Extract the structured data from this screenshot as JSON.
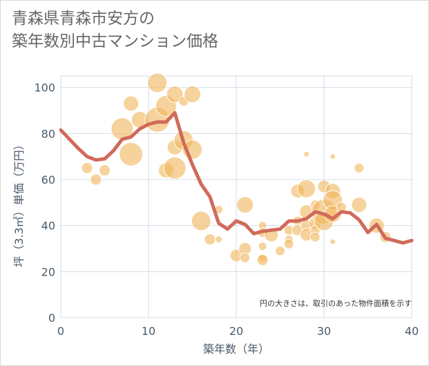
{
  "title_line1": "青森県青森市安方の",
  "title_line2": "築年数別中古マンション価格",
  "note": "円の大きさは、取引のあった物件面積を示す",
  "colors": {
    "bubble": "#f0b55a",
    "line": "#d06a5a",
    "grid": "#d0dce8",
    "axis_text": "#4a5a6a"
  },
  "chart_data": {
    "type": "scatter",
    "xlabel": "築年数（年）",
    "ylabel": "坪（3.3㎡）単価（万円）",
    "xlim": [
      0,
      40
    ],
    "ylim": [
      0,
      105
    ],
    "x_ticks": [
      0,
      10,
      20,
      30,
      40
    ],
    "y_ticks": [
      0,
      20,
      40,
      60,
      80,
      100
    ],
    "grid": true,
    "bubbles": [
      {
        "x": 3,
        "y": 65,
        "s": 8
      },
      {
        "x": 4,
        "y": 60,
        "s": 8
      },
      {
        "x": 5,
        "y": 64,
        "s": 8
      },
      {
        "x": 7,
        "y": 82,
        "s": 16
      },
      {
        "x": 8,
        "y": 93,
        "s": 11
      },
      {
        "x": 8,
        "y": 71,
        "s": 17
      },
      {
        "x": 9,
        "y": 86,
        "s": 12
      },
      {
        "x": 11,
        "y": 102,
        "s": 14
      },
      {
        "x": 11,
        "y": 86,
        "s": 18
      },
      {
        "x": 12,
        "y": 92,
        "s": 15
      },
      {
        "x": 12,
        "y": 64,
        "s": 11
      },
      {
        "x": 13,
        "y": 97,
        "s": 12
      },
      {
        "x": 13,
        "y": 74,
        "s": 11
      },
      {
        "x": 13,
        "y": 65,
        "s": 16
      },
      {
        "x": 14,
        "y": 94,
        "s": 7
      },
      {
        "x": 14,
        "y": 77,
        "s": 14
      },
      {
        "x": 15,
        "y": 97,
        "s": 12
      },
      {
        "x": 15,
        "y": 73,
        "s": 14
      },
      {
        "x": 16,
        "y": 42,
        "s": 14
      },
      {
        "x": 17,
        "y": 34,
        "s": 8
      },
      {
        "x": 18,
        "y": 47,
        "s": 6
      },
      {
        "x": 18,
        "y": 34,
        "s": 5
      },
      {
        "x": 20,
        "y": 27,
        "s": 9
      },
      {
        "x": 21,
        "y": 49,
        "s": 12
      },
      {
        "x": 21,
        "y": 30,
        "s": 9
      },
      {
        "x": 21,
        "y": 26,
        "s": 7
      },
      {
        "x": 23,
        "y": 40,
        "s": 6
      },
      {
        "x": 23,
        "y": 37,
        "s": 7
      },
      {
        "x": 23,
        "y": 31,
        "s": 6
      },
      {
        "x": 23,
        "y": 26,
        "s": 6
      },
      {
        "x": 23,
        "y": 25,
        "s": 8
      },
      {
        "x": 24,
        "y": 36,
        "s": 10
      },
      {
        "x": 25,
        "y": 29,
        "s": 7
      },
      {
        "x": 26,
        "y": 38,
        "s": 7
      },
      {
        "x": 26,
        "y": 34,
        "s": 6
      },
      {
        "x": 26,
        "y": 32,
        "s": 7
      },
      {
        "x": 27,
        "y": 55,
        "s": 10
      },
      {
        "x": 27,
        "y": 42,
        "s": 7
      },
      {
        "x": 27,
        "y": 38,
        "s": 8
      },
      {
        "x": 28,
        "y": 71,
        "s": 4
      },
      {
        "x": 28,
        "y": 56,
        "s": 13
      },
      {
        "x": 28,
        "y": 46,
        "s": 10
      },
      {
        "x": 28,
        "y": 40,
        "s": 8
      },
      {
        "x": 28,
        "y": 36,
        "s": 9
      },
      {
        "x": 29,
        "y": 49,
        "s": 7
      },
      {
        "x": 29,
        "y": 41,
        "s": 9
      },
      {
        "x": 29,
        "y": 38,
        "s": 7
      },
      {
        "x": 29,
        "y": 35,
        "s": 7
      },
      {
        "x": 30,
        "y": 57,
        "s": 9
      },
      {
        "x": 30,
        "y": 46,
        "s": 18
      },
      {
        "x": 30,
        "y": 42,
        "s": 14
      },
      {
        "x": 31,
        "y": 70,
        "s": 4
      },
      {
        "x": 31,
        "y": 55,
        "s": 11
      },
      {
        "x": 31,
        "y": 51,
        "s": 14
      },
      {
        "x": 31,
        "y": 45,
        "s": 12
      },
      {
        "x": 31,
        "y": 33,
        "s": 4
      },
      {
        "x": 32,
        "y": 48,
        "s": 7
      },
      {
        "x": 34,
        "y": 65,
        "s": 7
      },
      {
        "x": 34,
        "y": 49,
        "s": 11
      },
      {
        "x": 36,
        "y": 40,
        "s": 11
      },
      {
        "x": 37,
        "y": 35,
        "s": 8
      }
    ],
    "series": [
      {
        "x": [
          0,
          1,
          2,
          3,
          4,
          5,
          6,
          7,
          8,
          9,
          10,
          11,
          12,
          13,
          14,
          15,
          16,
          17,
          18,
          19,
          20,
          21,
          22,
          23,
          24,
          25,
          26,
          27,
          28,
          29,
          30,
          31,
          32,
          33,
          34,
          35,
          36,
          37,
          38,
          39,
          40
        ],
        "values": [
          81.5,
          77.5,
          73.5,
          70,
          68.5,
          69,
          72.5,
          77.5,
          78.5,
          82,
          84,
          85,
          85,
          89,
          76,
          66.5,
          58,
          52.5,
          41,
          38.5,
          42,
          40.5,
          36.5,
          37.5,
          38,
          38.5,
          42,
          42,
          43,
          46,
          45,
          43,
          46,
          45.5,
          42.5,
          37,
          40.5,
          34.5,
          33.5,
          32.5,
          33.5
        ]
      }
    ]
  }
}
